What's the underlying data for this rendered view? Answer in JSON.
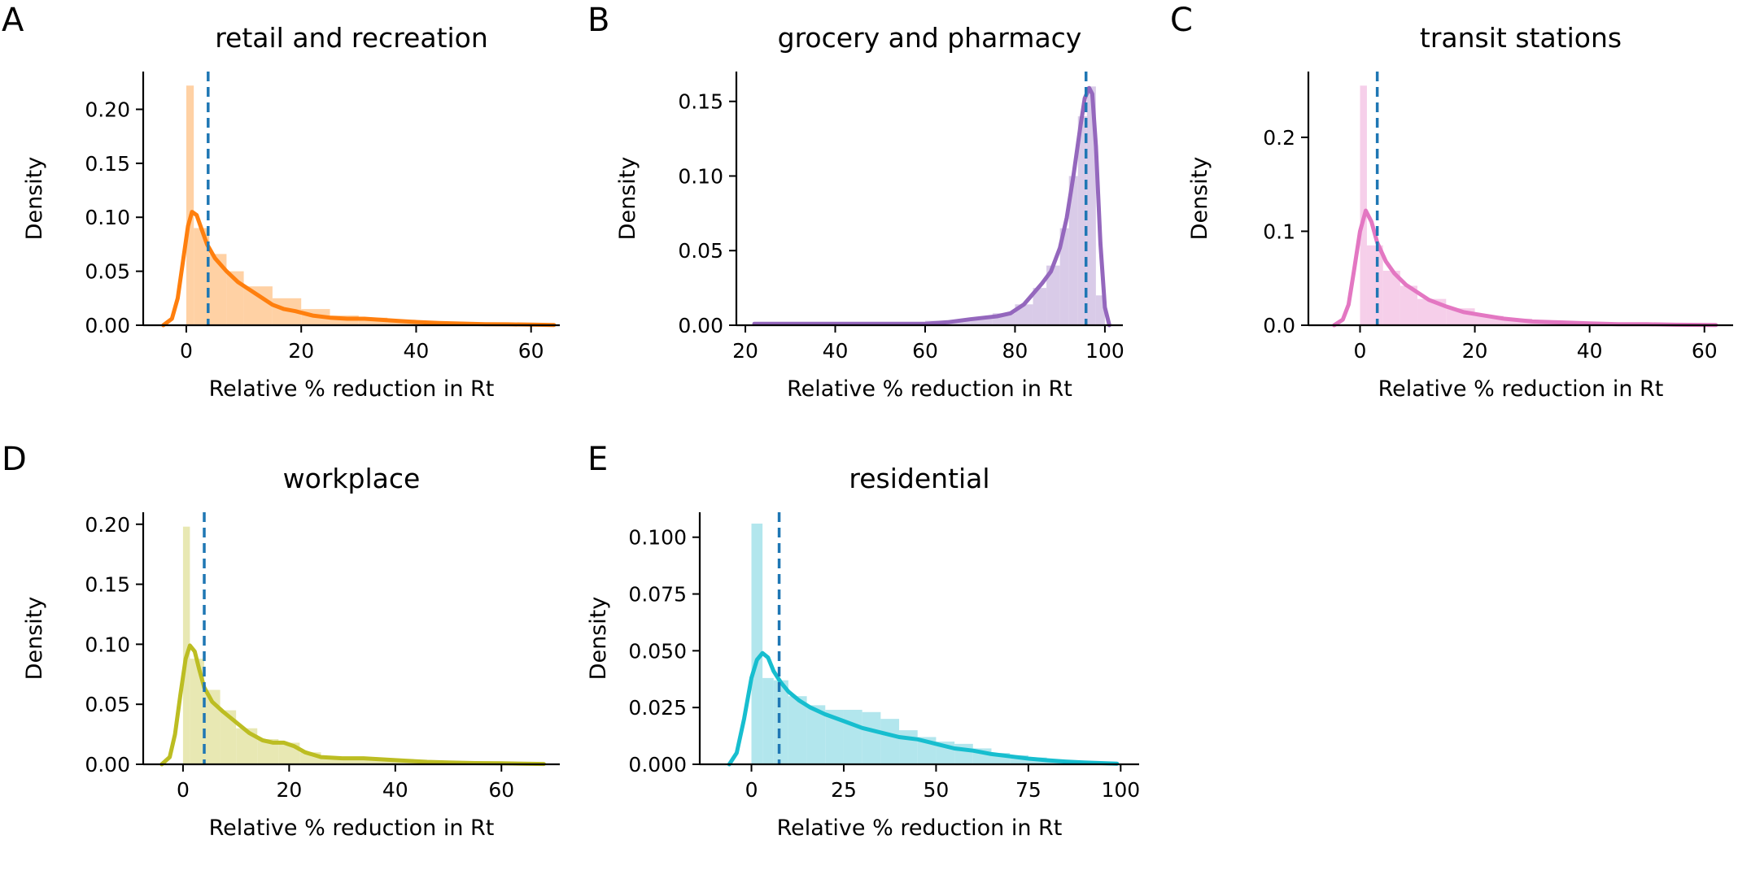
{
  "chart_data": [
    {
      "type": "area",
      "panel_label": "A",
      "title": "retail and recreation",
      "xlabel": "Relative % reduction in Rt",
      "ylabel": "Density",
      "xlim": [
        -7.5,
        65
      ],
      "ylim": [
        0,
        0.235
      ],
      "xticks": [
        0,
        20,
        40,
        60
      ],
      "xtick_labels": [
        "0",
        "20",
        "40",
        "60"
      ],
      "yticks": [
        0,
        0.05,
        0.1,
        0.15,
        0.2
      ],
      "ytick_labels": [
        "0.00",
        "0.05",
        "0.10",
        "0.15",
        "0.20"
      ],
      "color": "#ff7f0e",
      "fill_color": "#ffc994",
      "mean_line_x": 3.8,
      "histogram": {
        "bin_edges": [
          0,
          1.3,
          4,
          7,
          10,
          15,
          20,
          25,
          30,
          35,
          40,
          45,
          50,
          55,
          60,
          64
        ],
        "values": [
          0.222,
          0.09,
          0.066,
          0.05,
          0.036,
          0.025,
          0.015,
          0.009,
          0.007,
          0.005,
          0.003,
          0.002,
          0.001,
          0.001,
          0.0005
        ]
      },
      "kde": {
        "x": [
          -4,
          -2.5,
          -1.5,
          -0.5,
          0.3,
          1,
          1.8,
          2.6,
          3.6,
          5,
          7,
          9,
          11,
          13,
          15,
          17,
          19,
          22,
          25,
          28,
          31,
          34,
          37,
          40,
          44,
          48,
          52,
          56,
          60,
          64
        ],
        "y": [
          0,
          0.006,
          0.025,
          0.062,
          0.092,
          0.105,
          0.102,
          0.09,
          0.075,
          0.062,
          0.05,
          0.04,
          0.033,
          0.026,
          0.019,
          0.015,
          0.013,
          0.009,
          0.007,
          0.006,
          0.006,
          0.005,
          0.004,
          0.003,
          0.002,
          0.0015,
          0.001,
          0.0008,
          0.0005,
          0.0002
        ]
      }
    },
    {
      "type": "area",
      "panel_label": "B",
      "title": "grocery and pharmacy",
      "xlabel": "Relative % reduction in Rt",
      "ylabel": "Density",
      "xlim": [
        18,
        104
      ],
      "ylim": [
        0,
        0.17
      ],
      "xticks": [
        20,
        40,
        60,
        80,
        100
      ],
      "xtick_labels": [
        "20",
        "40",
        "60",
        "80",
        "100"
      ],
      "yticks": [
        0,
        0.05,
        0.1,
        0.15
      ],
      "ytick_labels": [
        "0.00",
        "0.05",
        "0.10",
        "0.15"
      ],
      "color": "#9467bd",
      "fill_color": "#d2c2e4",
      "mean_line_x": 95.8,
      "histogram": {
        "bin_edges": [
          22,
          40,
          60,
          70,
          75,
          80,
          84,
          87,
          90,
          92,
          94,
          96,
          98,
          100
        ],
        "values": [
          0.001,
          0.002,
          0.003,
          0.005,
          0.008,
          0.014,
          0.025,
          0.04,
          0.065,
          0.1,
          0.14,
          0.16,
          0.02
        ]
      },
      "kde": {
        "x": [
          22,
          30,
          40,
          50,
          60,
          65,
          70,
          73,
          76,
          79,
          82,
          84,
          86,
          88,
          90,
          91.5,
          93,
          94.5,
          95.5,
          96.5,
          97.2,
          98,
          99,
          100,
          101
        ],
        "y": [
          0.001,
          0.001,
          0.001,
          0.001,
          0.001,
          0.002,
          0.004,
          0.005,
          0.006,
          0.008,
          0.014,
          0.021,
          0.028,
          0.036,
          0.052,
          0.072,
          0.1,
          0.132,
          0.152,
          0.159,
          0.155,
          0.12,
          0.055,
          0.012,
          0
        ]
      }
    },
    {
      "type": "area",
      "panel_label": "C",
      "title": "transit stations",
      "xlabel": "Relative % reduction in Rt",
      "ylabel": "Density",
      "xlim": [
        -9,
        65
      ],
      "ylim": [
        0,
        0.27
      ],
      "xticks": [
        0,
        20,
        40,
        60
      ],
      "xtick_labels": [
        "0",
        "20",
        "40",
        "60"
      ],
      "yticks": [
        0,
        0.1,
        0.2
      ],
      "ytick_labels": [
        "0.0",
        "0.1",
        "0.2"
      ],
      "color": "#e377c2",
      "fill_color": "#f4c7e6",
      "mean_line_x": 3,
      "histogram": {
        "bin_edges": [
          0,
          1.2,
          4,
          7,
          10,
          15,
          20,
          25,
          30,
          35,
          40,
          45,
          50,
          55,
          62
        ],
        "values": [
          0.255,
          0.085,
          0.058,
          0.042,
          0.028,
          0.018,
          0.01,
          0.007,
          0.004,
          0.003,
          0.002,
          0.001,
          0.001,
          0.0005
        ]
      },
      "kde": {
        "x": [
          -4.5,
          -3,
          -2,
          -1,
          0,
          1,
          2,
          3,
          4.5,
          6,
          8,
          10,
          12,
          15,
          18,
          21,
          25,
          30,
          35,
          40,
          45,
          50,
          55,
          62
        ],
        "y": [
          0,
          0.006,
          0.022,
          0.06,
          0.1,
          0.122,
          0.11,
          0.088,
          0.068,
          0.055,
          0.043,
          0.035,
          0.027,
          0.02,
          0.014,
          0.011,
          0.007,
          0.004,
          0.003,
          0.002,
          0.001,
          0.001,
          0.0005,
          0.0002
        ]
      }
    },
    {
      "type": "area",
      "panel_label": "D",
      "title": "workplace",
      "xlabel": "Relative % reduction in Rt",
      "ylabel": "Density",
      "xlim": [
        -7.5,
        71
      ],
      "ylim": [
        0,
        0.21
      ],
      "xticks": [
        0,
        20,
        40,
        60
      ],
      "xtick_labels": [
        "0",
        "20",
        "40",
        "60"
      ],
      "yticks": [
        0,
        0.05,
        0.1,
        0.15,
        0.2
      ],
      "ytick_labels": [
        "0.00",
        "0.05",
        "0.10",
        "0.15",
        "0.20"
      ],
      "color": "#bcbd22",
      "fill_color": "#e4e4a6",
      "mean_line_x": 4,
      "histogram": {
        "bin_edges": [
          0,
          1.3,
          4,
          7,
          10,
          14,
          18,
          22,
          26,
          30,
          35,
          40,
          45,
          50,
          55,
          60,
          68
        ],
        "values": [
          0.198,
          0.088,
          0.062,
          0.045,
          0.03,
          0.021,
          0.018,
          0.01,
          0.006,
          0.005,
          0.004,
          0.003,
          0.002,
          0.0015,
          0.001,
          0.0005
        ]
      },
      "kde": {
        "x": [
          -4,
          -2.5,
          -1.5,
          -0.5,
          0.5,
          1.3,
          2.2,
          3,
          4,
          5.5,
          7.5,
          10,
          12.5,
          15,
          17,
          19,
          21,
          23,
          26,
          30,
          34,
          38,
          42,
          46,
          50,
          55,
          60,
          68
        ],
        "y": [
          0,
          0.006,
          0.025,
          0.058,
          0.088,
          0.099,
          0.094,
          0.08,
          0.064,
          0.052,
          0.044,
          0.035,
          0.026,
          0.02,
          0.018,
          0.018,
          0.015,
          0.01,
          0.006,
          0.005,
          0.005,
          0.004,
          0.003,
          0.002,
          0.0015,
          0.001,
          0.0008,
          0.0003
        ]
      }
    },
    {
      "type": "area",
      "panel_label": "E",
      "title": "residential",
      "xlabel": "Relative % reduction in Rt",
      "ylabel": "Density",
      "xlim": [
        -14,
        105
      ],
      "ylim": [
        0,
        0.111
      ],
      "xticks": [
        0,
        25,
        50,
        75,
        100
      ],
      "xtick_labels": [
        "0",
        "25",
        "50",
        "75",
        "100"
      ],
      "yticks": [
        0,
        0.025,
        0.05,
        0.075,
        0.1
      ],
      "ytick_labels": [
        "0.000",
        "0.025",
        "0.050",
        "0.075",
        "0.100"
      ],
      "color": "#17becf",
      "fill_color": "#a4e2ea",
      "mean_line_x": 7.5,
      "histogram": {
        "bin_edges": [
          0,
          3,
          6,
          10,
          15,
          20,
          25,
          30,
          35,
          40,
          45,
          50,
          55,
          60,
          65,
          70,
          75,
          80,
          85,
          90,
          95,
          99
        ],
        "values": [
          0.106,
          0.038,
          0.037,
          0.03,
          0.026,
          0.024,
          0.024,
          0.023,
          0.02,
          0.015,
          0.012,
          0.01,
          0.009,
          0.007,
          0.005,
          0.004,
          0.003,
          0.002,
          0.0015,
          0.001,
          0.0005
        ]
      },
      "kde": {
        "x": [
          -6,
          -4,
          -2,
          0,
          1.5,
          3,
          4.5,
          6,
          8,
          10,
          13,
          16,
          20,
          25,
          30,
          35,
          40,
          45,
          50,
          55,
          60,
          65,
          70,
          75,
          80,
          85,
          90,
          99
        ],
        "y": [
          0,
          0.005,
          0.02,
          0.038,
          0.046,
          0.049,
          0.047,
          0.041,
          0.036,
          0.032,
          0.028,
          0.025,
          0.022,
          0.019,
          0.016,
          0.014,
          0.012,
          0.011,
          0.009,
          0.007,
          0.006,
          0.0045,
          0.0035,
          0.0025,
          0.0018,
          0.0012,
          0.0008,
          0.0003
        ]
      }
    }
  ]
}
